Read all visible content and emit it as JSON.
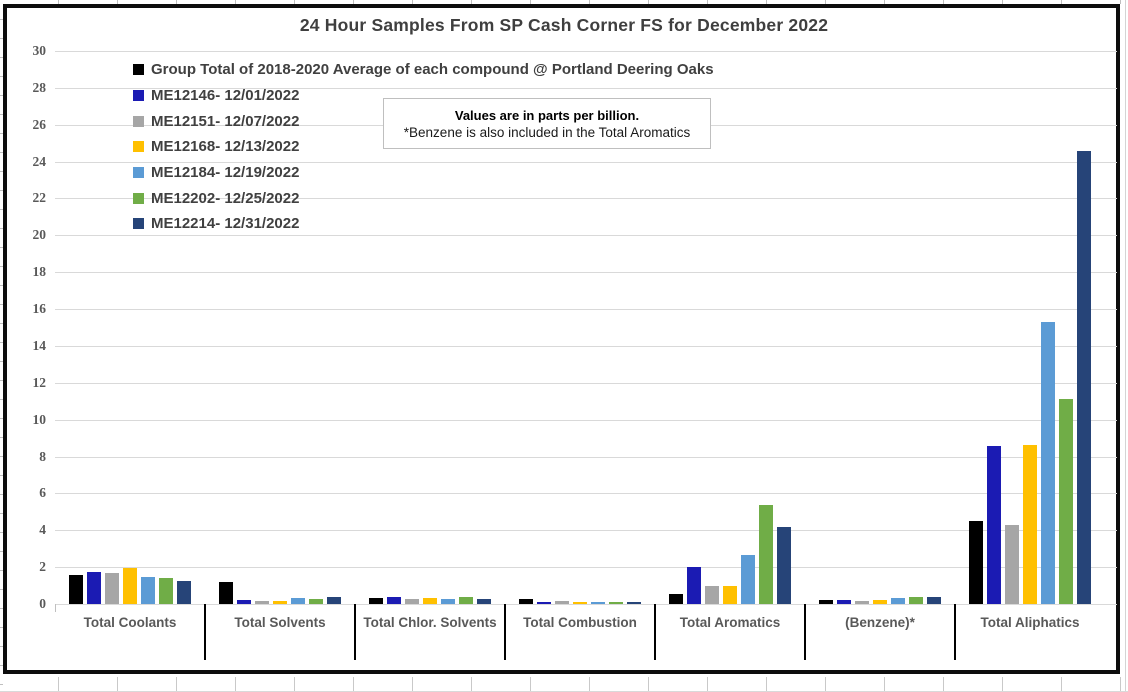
{
  "chart_data": {
    "type": "bar",
    "title": "24 Hour Samples From SP Cash Corner FS for December 2022",
    "unit_note": "parts per billion",
    "categories": [
      "Total Coolants",
      "Total Solvents",
      "Total Chlor. Solvents",
      "Total Combustion",
      "Total Aromatics",
      "(Benzene)*",
      "Total Aliphatics"
    ],
    "series": [
      {
        "name": "Group Total of 2018-2020 Average of each compound @ Portland Deering Oaks",
        "color": "#000000",
        "values": [
          1.55,
          1.2,
          0.35,
          0.25,
          0.55,
          0.2,
          4.5
        ]
      },
      {
        "name": "ME12146- 12/01/2022",
        "color": "#1b1bb3",
        "values": [
          1.75,
          0.2,
          0.4,
          0.1,
          2.0,
          0.22,
          8.55
        ]
      },
      {
        "name": "ME12151- 12/07/2022",
        "color": "#a6a6a6",
        "values": [
          1.7,
          0.15,
          0.25,
          0.15,
          0.95,
          0.15,
          4.3
        ]
      },
      {
        "name": "ME12168- 12/13/2022",
        "color": "#ffc000",
        "values": [
          1.95,
          0.15,
          0.35,
          0.1,
          1.0,
          0.2,
          8.65
        ]
      },
      {
        "name": "ME12184- 12/19/2022",
        "color": "#5b9bd5",
        "values": [
          1.45,
          0.3,
          0.28,
          0.1,
          2.65,
          0.3,
          15.3
        ]
      },
      {
        "name": "ME12202- 12/25/2022",
        "color": "#70ad47",
        "values": [
          1.4,
          0.27,
          0.37,
          0.1,
          5.35,
          0.4,
          11.1
        ]
      },
      {
        "name": "ME12214- 12/31/2022",
        "color": "#264478",
        "values": [
          1.25,
          0.38,
          0.26,
          0.08,
          4.2,
          0.38,
          24.6
        ]
      }
    ],
    "ylim": [
      0,
      30
    ],
    "ytick_step": 2,
    "grid": true,
    "legend_position": "upper-left-inside",
    "annotation": {
      "line1": "Values are in parts per billion.",
      "line2": "*Benzene is also included in the Total Aromatics"
    }
  }
}
